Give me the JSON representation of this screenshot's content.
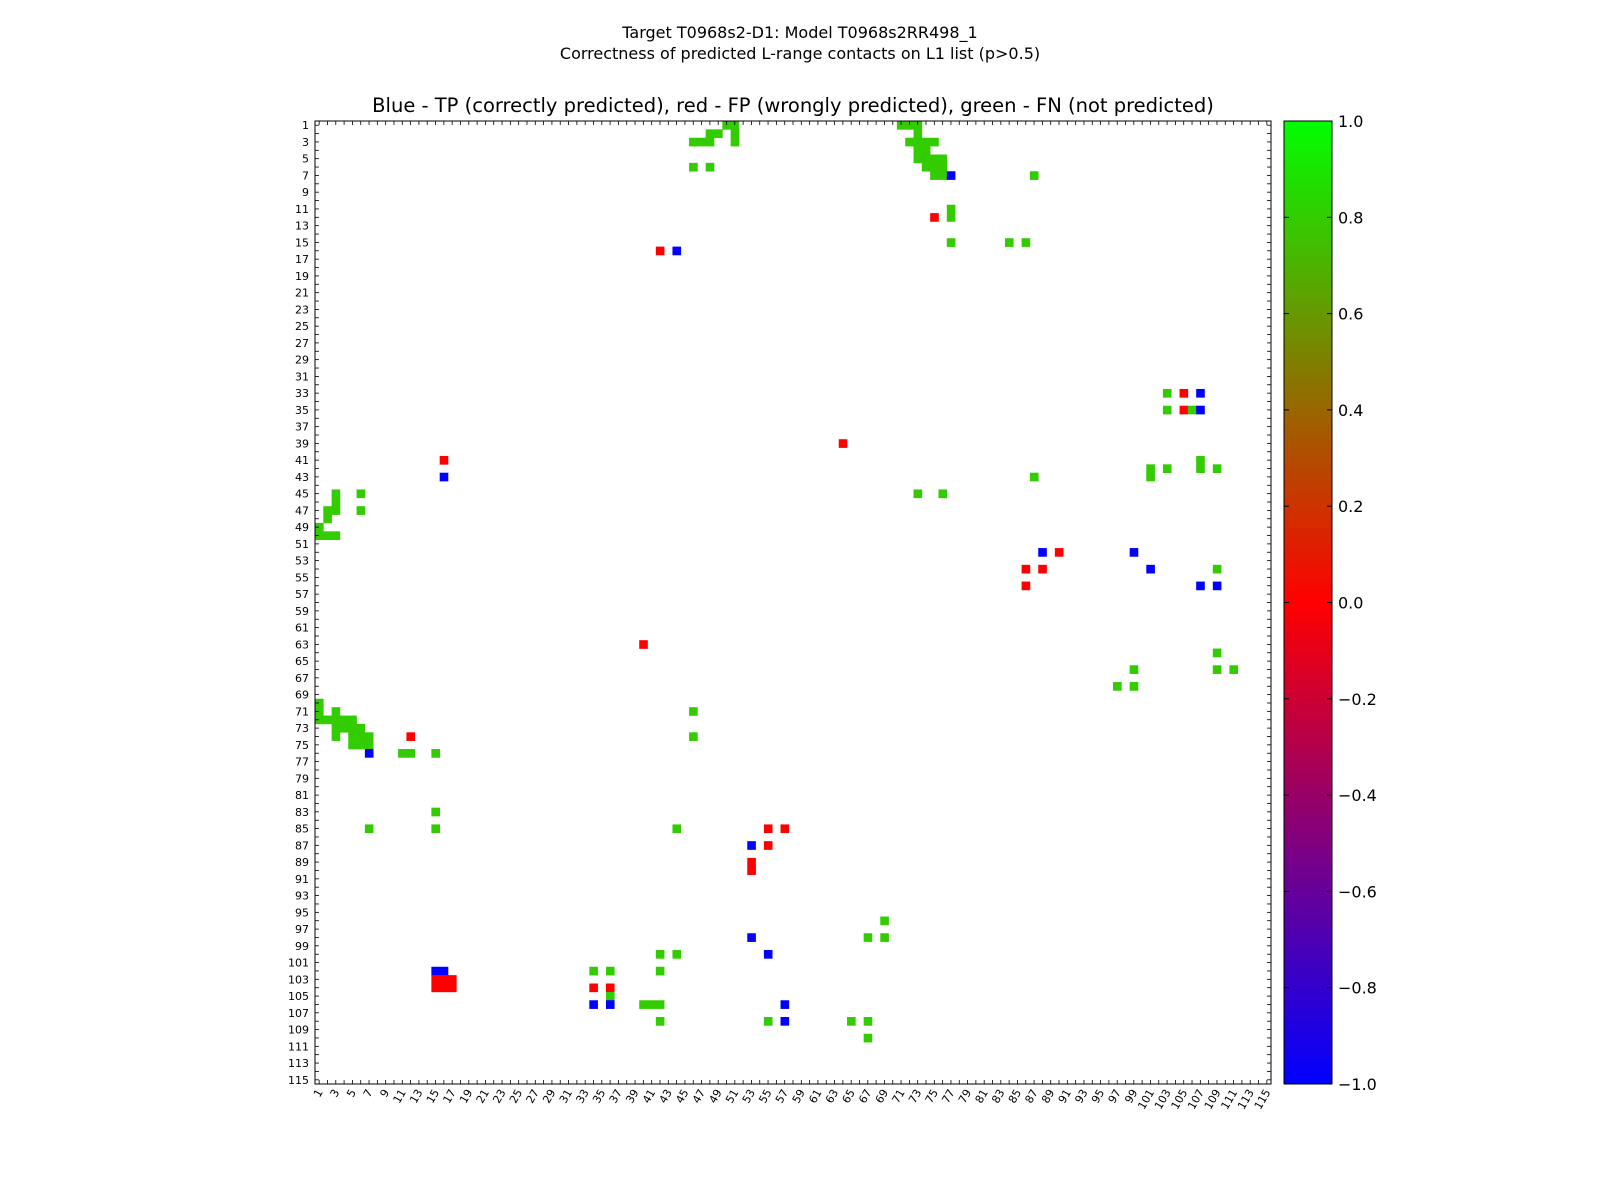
{
  "suptitle_line1": "Target T0968s2-D1: Model T0968s2RR498_1",
  "suptitle_line2": "Correctness of predicted L-range contacts on L1 list (p>0.5)",
  "chart_data": {
    "type": "heatmap",
    "title": "Blue - TP (correctly predicted), red - FP (wrongly predicted), green - FN (not predicted)",
    "xlabel": "",
    "ylabel": "",
    "n_residues": 115,
    "axis_range": [
      1,
      115
    ],
    "x_tick_labels": [
      "1",
      "3",
      "5",
      "7",
      "9",
      "11",
      "13",
      "15",
      "17",
      "19",
      "21",
      "23",
      "25",
      "27",
      "29",
      "31",
      "33",
      "35",
      "37",
      "39",
      "41",
      "43",
      "45",
      "47",
      "49",
      "51",
      "53",
      "55",
      "57",
      "59",
      "61",
      "63",
      "65",
      "67",
      "69",
      "71",
      "73",
      "75",
      "77",
      "79",
      "81",
      "83",
      "85",
      "87",
      "89",
      "91",
      "93",
      "95",
      "97",
      "99",
      "101",
      "103",
      "105",
      "107",
      "109",
      "111",
      "113",
      "115"
    ],
    "y_tick_labels": [
      "1",
      "3",
      "5",
      "7",
      "9",
      "11",
      "13",
      "15",
      "17",
      "19",
      "21",
      "23",
      "25",
      "27",
      "29",
      "31",
      "33",
      "35",
      "37",
      "39",
      "41",
      "43",
      "45",
      "47",
      "49",
      "51",
      "53",
      "55",
      "57",
      "59",
      "61",
      "63",
      "65",
      "67",
      "69",
      "71",
      "73",
      "75",
      "77",
      "79",
      "81",
      "83",
      "85",
      "87",
      "89",
      "91",
      "93",
      "95",
      "97",
      "99",
      "101",
      "103",
      "105",
      "107",
      "109",
      "111",
      "113",
      "115"
    ],
    "colorbar": {
      "range": [
        -1.0,
        1.0
      ],
      "tick_labels": [
        "1.0",
        "0.8",
        "0.6",
        "0.4",
        "0.2",
        "0.0",
        "−0.2",
        "−0.4",
        "−0.6",
        "−0.8",
        "−1.0"
      ],
      "tick_values": [
        1.0,
        0.8,
        0.6,
        0.4,
        0.2,
        0.0,
        -0.2,
        -0.4,
        -0.6,
        -0.8,
        -1.0
      ],
      "colors": {
        "low": "#0000ff",
        "mid": "#ff0000",
        "high": "#00ff00"
      }
    },
    "legend": {
      "TP": "blue",
      "FP": "red",
      "FN": "green"
    },
    "cell_colors": {
      "TP": "#0000ff",
      "FP": "#ff0000",
      "FN": "#33cc00"
    },
    "cells": [
      {
        "i": 1,
        "j": 50,
        "t": "FN"
      },
      {
        "i": 1,
        "j": 51,
        "t": "FN"
      },
      {
        "i": 1,
        "j": 71,
        "t": "FN"
      },
      {
        "i": 1,
        "j": 72,
        "t": "FN"
      },
      {
        "i": 1,
        "j": 73,
        "t": "FN"
      },
      {
        "i": 2,
        "j": 48,
        "t": "FN"
      },
      {
        "i": 2,
        "j": 49,
        "t": "FN"
      },
      {
        "i": 2,
        "j": 51,
        "t": "FN"
      },
      {
        "i": 2,
        "j": 73,
        "t": "FN"
      },
      {
        "i": 3,
        "j": 46,
        "t": "FN"
      },
      {
        "i": 3,
        "j": 47,
        "t": "FN"
      },
      {
        "i": 3,
        "j": 48,
        "t": "FN"
      },
      {
        "i": 3,
        "j": 51,
        "t": "FN"
      },
      {
        "i": 3,
        "j": 72,
        "t": "FN"
      },
      {
        "i": 3,
        "j": 73,
        "t": "FN"
      },
      {
        "i": 3,
        "j": 74,
        "t": "FN"
      },
      {
        "i": 3,
        "j": 75,
        "t": "FN"
      },
      {
        "i": 4,
        "j": 73,
        "t": "FN"
      },
      {
        "i": 4,
        "j": 74,
        "t": "FN"
      },
      {
        "i": 5,
        "j": 73,
        "t": "FN"
      },
      {
        "i": 5,
        "j": 74,
        "t": "FN"
      },
      {
        "i": 5,
        "j": 75,
        "t": "FN"
      },
      {
        "i": 5,
        "j": 76,
        "t": "FN"
      },
      {
        "i": 6,
        "j": 46,
        "t": "FN"
      },
      {
        "i": 6,
        "j": 48,
        "t": "FN"
      },
      {
        "i": 6,
        "j": 74,
        "t": "FN"
      },
      {
        "i": 6,
        "j": 75,
        "t": "FN"
      },
      {
        "i": 6,
        "j": 76,
        "t": "FN"
      },
      {
        "i": 7,
        "j": 75,
        "t": "FN"
      },
      {
        "i": 7,
        "j": 76,
        "t": "FN"
      },
      {
        "i": 7,
        "j": 77,
        "t": "TP"
      },
      {
        "i": 7,
        "j": 87,
        "t": "FN"
      },
      {
        "i": 11,
        "j": 77,
        "t": "FN"
      },
      {
        "i": 12,
        "j": 75,
        "t": "FP"
      },
      {
        "i": 12,
        "j": 77,
        "t": "FN"
      },
      {
        "i": 15,
        "j": 77,
        "t": "FN"
      },
      {
        "i": 15,
        "j": 84,
        "t": "FN"
      },
      {
        "i": 15,
        "j": 86,
        "t": "FN"
      },
      {
        "i": 16,
        "j": 42,
        "t": "FP"
      },
      {
        "i": 16,
        "j": 44,
        "t": "TP"
      },
      {
        "i": 33,
        "j": 103,
        "t": "FN"
      },
      {
        "i": 33,
        "j": 105,
        "t": "FP"
      },
      {
        "i": 33,
        "j": 107,
        "t": "TP"
      },
      {
        "i": 35,
        "j": 103,
        "t": "FN"
      },
      {
        "i": 35,
        "j": 105,
        "t": "FP"
      },
      {
        "i": 35,
        "j": 106,
        "t": "FN"
      },
      {
        "i": 35,
        "j": 107,
        "t": "TP"
      },
      {
        "i": 39,
        "j": 64,
        "t": "FP"
      },
      {
        "i": 41,
        "j": 16,
        "t": "FP"
      },
      {
        "i": 41,
        "j": 107,
        "t": "FN"
      },
      {
        "i": 42,
        "j": 101,
        "t": "FN"
      },
      {
        "i": 42,
        "j": 103,
        "t": "FN"
      },
      {
        "i": 42,
        "j": 107,
        "t": "FN"
      },
      {
        "i": 42,
        "j": 109,
        "t": "FN"
      },
      {
        "i": 43,
        "j": 16,
        "t": "TP"
      },
      {
        "i": 43,
        "j": 87,
        "t": "FN"
      },
      {
        "i": 43,
        "j": 101,
        "t": "FN"
      },
      {
        "i": 45,
        "j": 3,
        "t": "FN"
      },
      {
        "i": 45,
        "j": 6,
        "t": "FN"
      },
      {
        "i": 45,
        "j": 73,
        "t": "FN"
      },
      {
        "i": 45,
        "j": 76,
        "t": "FN"
      },
      {
        "i": 46,
        "j": 3,
        "t": "FN"
      },
      {
        "i": 47,
        "j": 2,
        "t": "FN"
      },
      {
        "i": 47,
        "j": 3,
        "t": "FN"
      },
      {
        "i": 47,
        "j": 6,
        "t": "FN"
      },
      {
        "i": 48,
        "j": 2,
        "t": "FN"
      },
      {
        "i": 49,
        "j": 1,
        "t": "FN"
      },
      {
        "i": 50,
        "j": 1,
        "t": "FN"
      },
      {
        "i": 50,
        "j": 2,
        "t": "FN"
      },
      {
        "i": 50,
        "j": 3,
        "t": "FN"
      },
      {
        "i": 52,
        "j": 88,
        "t": "TP"
      },
      {
        "i": 52,
        "j": 90,
        "t": "FP"
      },
      {
        "i": 52,
        "j": 99,
        "t": "TP"
      },
      {
        "i": 54,
        "j": 86,
        "t": "FP"
      },
      {
        "i": 54,
        "j": 88,
        "t": "FP"
      },
      {
        "i": 54,
        "j": 101,
        "t": "TP"
      },
      {
        "i": 54,
        "j": 109,
        "t": "FN"
      },
      {
        "i": 56,
        "j": 86,
        "t": "FP"
      },
      {
        "i": 56,
        "j": 107,
        "t": "TP"
      },
      {
        "i": 56,
        "j": 109,
        "t": "TP"
      },
      {
        "i": 63,
        "j": 40,
        "t": "FP"
      },
      {
        "i": 64,
        "j": 109,
        "t": "FN"
      },
      {
        "i": 66,
        "j": 99,
        "t": "FN"
      },
      {
        "i": 66,
        "j": 109,
        "t": "FN"
      },
      {
        "i": 66,
        "j": 111,
        "t": "FN"
      },
      {
        "i": 68,
        "j": 97,
        "t": "FN"
      },
      {
        "i": 68,
        "j": 99,
        "t": "FN"
      },
      {
        "i": 70,
        "j": 1,
        "t": "FN"
      },
      {
        "i": 71,
        "j": 1,
        "t": "FN"
      },
      {
        "i": 71,
        "j": 3,
        "t": "FN"
      },
      {
        "i": 71,
        "j": 46,
        "t": "FN"
      },
      {
        "i": 72,
        "j": 1,
        "t": "FN"
      },
      {
        "i": 72,
        "j": 2,
        "t": "FN"
      },
      {
        "i": 72,
        "j": 3,
        "t": "FN"
      },
      {
        "i": 72,
        "j": 4,
        "t": "FN"
      },
      {
        "i": 72,
        "j": 5,
        "t": "FN"
      },
      {
        "i": 73,
        "j": 3,
        "t": "FN"
      },
      {
        "i": 73,
        "j": 4,
        "t": "FN"
      },
      {
        "i": 73,
        "j": 5,
        "t": "FN"
      },
      {
        "i": 73,
        "j": 6,
        "t": "FN"
      },
      {
        "i": 74,
        "j": 3,
        "t": "FN"
      },
      {
        "i": 74,
        "j": 5,
        "t": "FN"
      },
      {
        "i": 74,
        "j": 6,
        "t": "FN"
      },
      {
        "i": 74,
        "j": 7,
        "t": "FN"
      },
      {
        "i": 74,
        "j": 12,
        "t": "FP"
      },
      {
        "i": 74,
        "j": 46,
        "t": "FN"
      },
      {
        "i": 75,
        "j": 5,
        "t": "FN"
      },
      {
        "i": 75,
        "j": 6,
        "t": "FN"
      },
      {
        "i": 75,
        "j": 7,
        "t": "FN"
      },
      {
        "i": 76,
        "j": 7,
        "t": "TP"
      },
      {
        "i": 76,
        "j": 11,
        "t": "FN"
      },
      {
        "i": 76,
        "j": 12,
        "t": "FN"
      },
      {
        "i": 76,
        "j": 15,
        "t": "FN"
      },
      {
        "i": 83,
        "j": 15,
        "t": "FN"
      },
      {
        "i": 85,
        "j": 7,
        "t": "FN"
      },
      {
        "i": 85,
        "j": 15,
        "t": "FN"
      },
      {
        "i": 85,
        "j": 44,
        "t": "FN"
      },
      {
        "i": 85,
        "j": 55,
        "t": "FP"
      },
      {
        "i": 85,
        "j": 57,
        "t": "FP"
      },
      {
        "i": 87,
        "j": 53,
        "t": "TP"
      },
      {
        "i": 87,
        "j": 55,
        "t": "FP"
      },
      {
        "i": 89,
        "j": 53,
        "t": "FP"
      },
      {
        "i": 90,
        "j": 53,
        "t": "FP"
      },
      {
        "i": 96,
        "j": 69,
        "t": "FN"
      },
      {
        "i": 98,
        "j": 53,
        "t": "TP"
      },
      {
        "i": 98,
        "j": 67,
        "t": "FN"
      },
      {
        "i": 98,
        "j": 69,
        "t": "FN"
      },
      {
        "i": 100,
        "j": 42,
        "t": "FN"
      },
      {
        "i": 100,
        "j": 44,
        "t": "FN"
      },
      {
        "i": 100,
        "j": 55,
        "t": "TP"
      },
      {
        "i": 102,
        "j": 15,
        "t": "TP"
      },
      {
        "i": 102,
        "j": 16,
        "t": "TP"
      },
      {
        "i": 102,
        "j": 34,
        "t": "FN"
      },
      {
        "i": 102,
        "j": 36,
        "t": "FN"
      },
      {
        "i": 102,
        "j": 42,
        "t": "FN"
      },
      {
        "i": 103,
        "j": 15,
        "t": "FP"
      },
      {
        "i": 103,
        "j": 16,
        "t": "FP"
      },
      {
        "i": 103,
        "j": 17,
        "t": "FP"
      },
      {
        "i": 104,
        "j": 15,
        "t": "FP"
      },
      {
        "i": 104,
        "j": 16,
        "t": "FP"
      },
      {
        "i": 104,
        "j": 17,
        "t": "FP"
      },
      {
        "i": 104,
        "j": 34,
        "t": "FP"
      },
      {
        "i": 104,
        "j": 36,
        "t": "FP"
      },
      {
        "i": 105,
        "j": 36,
        "t": "FN"
      },
      {
        "i": 106,
        "j": 34,
        "t": "TP"
      },
      {
        "i": 106,
        "j": 36,
        "t": "TP"
      },
      {
        "i": 106,
        "j": 40,
        "t": "FN"
      },
      {
        "i": 106,
        "j": 41,
        "t": "FN"
      },
      {
        "i": 106,
        "j": 42,
        "t": "FN"
      },
      {
        "i": 106,
        "j": 57,
        "t": "TP"
      },
      {
        "i": 108,
        "j": 42,
        "t": "FN"
      },
      {
        "i": 108,
        "j": 55,
        "t": "FN"
      },
      {
        "i": 108,
        "j": 57,
        "t": "TP"
      },
      {
        "i": 108,
        "j": 65,
        "t": "FN"
      },
      {
        "i": 108,
        "j": 67,
        "t": "FN"
      },
      {
        "i": 110,
        "j": 67,
        "t": "FN"
      }
    ]
  }
}
